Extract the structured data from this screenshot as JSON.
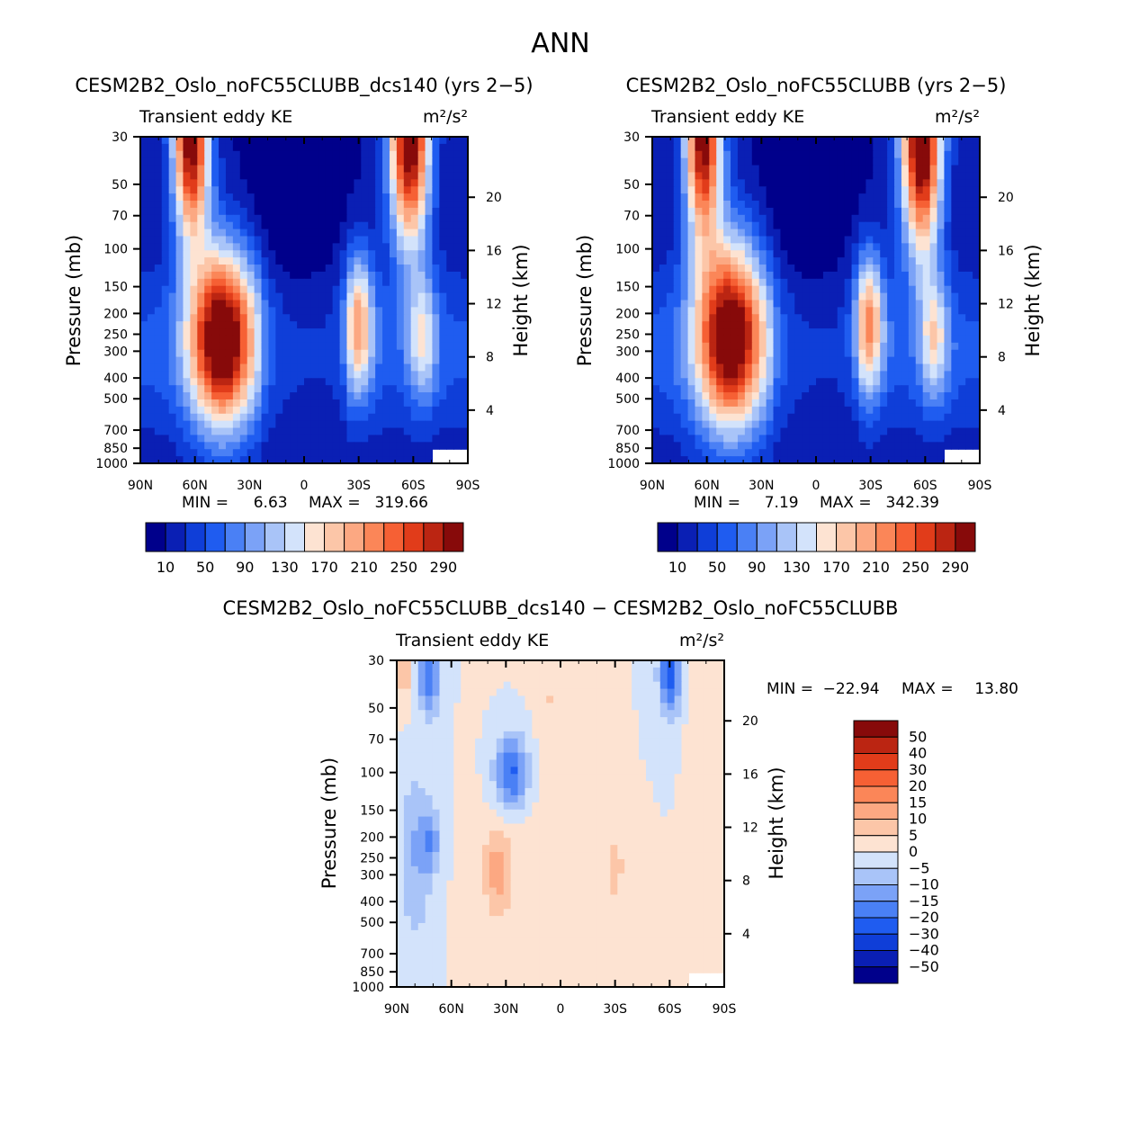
{
  "figure_title": "ANN",
  "colors": {
    "cool": [
      "#00008b",
      "#0a1fb4",
      "#0f3ed8",
      "#1f5cf0",
      "#4a80f5",
      "#7ba2f7",
      "#a9c4f8",
      "#d3e3fb"
    ],
    "warm": [
      "#fde3d2",
      "#fcc6a8",
      "#fca882",
      "#fb8658",
      "#f66034",
      "#e13c1a",
      "#bb2512",
      "#870a0a"
    ]
  },
  "chart_data": [
    {
      "id": "top-left",
      "type": "contour",
      "title": "CESM2B2_Oslo_noFC55CLUBB_dcs140 (yrs 2−5)",
      "subtitle": "Transient eddy KE",
      "units": "m²/s²",
      "xlabel": "",
      "ylabel": "Pressure (mb)",
      "ylabel_right": "Height (km)",
      "x_ticks": [
        "90N",
        "60N",
        "30N",
        "0",
        "30S",
        "60S",
        "90S"
      ],
      "x_tick_values": [
        90,
        60,
        30,
        0,
        -30,
        -60,
        -90
      ],
      "y_ticks": [
        30,
        50,
        70,
        100,
        150,
        200,
        250,
        300,
        400,
        500,
        700,
        850,
        1000
      ],
      "height_ticks": [
        4,
        8,
        12,
        16,
        20
      ],
      "min_label": "MIN =",
      "min_value": "6.63",
      "max_label": "MAX =",
      "max_value": "319.66",
      "levels": [
        "10",
        "50",
        "90",
        "130",
        "170",
        "210",
        "250",
        "290"
      ],
      "blobs": [
        {
          "lat": 45,
          "p": 260,
          "lat_r": 18,
          "lev_r": 2.8,
          "amp": 300
        },
        {
          "lat": 62,
          "p": 30,
          "lat_r": 10,
          "lev_r": 3.2,
          "amp": 310
        },
        {
          "lat": -58,
          "p": 30,
          "lat_r": 11,
          "lev_r": 3.4,
          "amp": 320
        },
        {
          "lat": -30,
          "p": 220,
          "lat_r": 8,
          "lev_r": 2.2,
          "amp": 160
        },
        {
          "lat": -65,
          "p": 260,
          "lat_r": 8,
          "lev_r": 2.0,
          "amp": 105
        }
      ]
    },
    {
      "id": "top-right",
      "type": "contour",
      "title": "CESM2B2_Oslo_noFC55CLUBB (yrs 2−5)",
      "subtitle": "Transient eddy KE",
      "units": "m²/s²",
      "xlabel": "",
      "ylabel": "Pressure (mb)",
      "ylabel_right": "Height (km)",
      "x_ticks": [
        "90N",
        "60N",
        "30N",
        "0",
        "30S",
        "60S",
        "90S"
      ],
      "x_tick_values": [
        90,
        60,
        30,
        0,
        -30,
        -60,
        -90
      ],
      "y_ticks": [
        30,
        50,
        70,
        100,
        150,
        200,
        250,
        300,
        400,
        500,
        700,
        850,
        1000
      ],
      "height_ticks": [
        4,
        8,
        12,
        16,
        20
      ],
      "min_label": "MIN =",
      "min_value": "7.19",
      "max_label": "MAX =",
      "max_value": "342.39",
      "levels": [
        "10",
        "50",
        "90",
        "130",
        "170",
        "210",
        "250",
        "290"
      ],
      "blobs": [
        {
          "lat": 47,
          "p": 250,
          "lat_r": 19,
          "lev_r": 3.0,
          "amp": 290
        },
        {
          "lat": 62,
          "p": 30,
          "lat_r": 10,
          "lev_r": 3.2,
          "amp": 300
        },
        {
          "lat": -58,
          "p": 30,
          "lat_r": 11,
          "lev_r": 3.6,
          "amp": 335
        },
        {
          "lat": -29,
          "p": 220,
          "lat_r": 8,
          "lev_r": 2.2,
          "amp": 170
        },
        {
          "lat": -65,
          "p": 260,
          "lat_r": 8,
          "lev_r": 2.0,
          "amp": 110
        }
      ]
    },
    {
      "id": "bottom",
      "type": "contour",
      "title": "CESM2B2_Oslo_noFC55CLUBB_dcs140 − CESM2B2_Oslo_noFC55CLUBB",
      "subtitle": "Transient eddy KE",
      "units": "m²/s²",
      "xlabel": "",
      "ylabel": "Pressure (mb)",
      "ylabel_right": "Height (km)",
      "x_ticks": [
        "90N",
        "60N",
        "30N",
        "0",
        "30S",
        "60S",
        "90S"
      ],
      "x_tick_values": [
        90,
        60,
        30,
        0,
        -30,
        -60,
        -90
      ],
      "y_ticks": [
        30,
        50,
        70,
        100,
        150,
        200,
        250,
        300,
        400,
        500,
        700,
        850,
        1000
      ],
      "height_ticks": [
        4,
        8,
        12,
        16,
        20
      ],
      "min_label": "MIN =",
      "min_value": "−22.94",
      "max_label": "MAX =",
      "max_value": "13.80",
      "levels": [
        "50",
        "40",
        "30",
        "20",
        "15",
        "10",
        "5",
        "0",
        "−5",
        "−10",
        "−15",
        "−20",
        "−30",
        "−40",
        "−50"
      ],
      "blobs": [
        {
          "lat": 27,
          "p": 100,
          "lat_r": 9,
          "lev_r": 1.2,
          "amp": -22
        },
        {
          "lat": 72,
          "p": 35,
          "lat_r": 6,
          "lev_r": 1.2,
          "amp": -20
        },
        {
          "lat": -60,
          "p": 35,
          "lat_r": 6,
          "lev_r": 1.3,
          "amp": -22
        },
        {
          "lat": 72,
          "p": 210,
          "lat_r": 6,
          "lev_r": 1.0,
          "amp": -12
        },
        {
          "lat": 80,
          "p": 250,
          "lat_r": 10,
          "lev_r": 3.0,
          "amp": -9
        },
        {
          "lat": 35,
          "p": 280,
          "lat_r": 7,
          "lev_r": 1.2,
          "amp": 11
        },
        {
          "lat": -30,
          "p": 280,
          "lat_r": 4,
          "lev_r": 1.0,
          "amp": 10
        },
        {
          "lat": 86,
          "p": 35,
          "lat_r": 4,
          "lev_r": 1.2,
          "amp": 8
        },
        {
          "lat": 5,
          "p": 45,
          "lat_r": 8,
          "lev_r": 1.5,
          "amp": 5
        },
        {
          "lat": 20,
          "p": 500,
          "lat_r": 25,
          "lev_r": 4.0,
          "amp": 4
        },
        {
          "lat": -75,
          "p": 60,
          "lat_r": 5,
          "lev_r": 4.0,
          "amp": 4
        }
      ]
    }
  ]
}
